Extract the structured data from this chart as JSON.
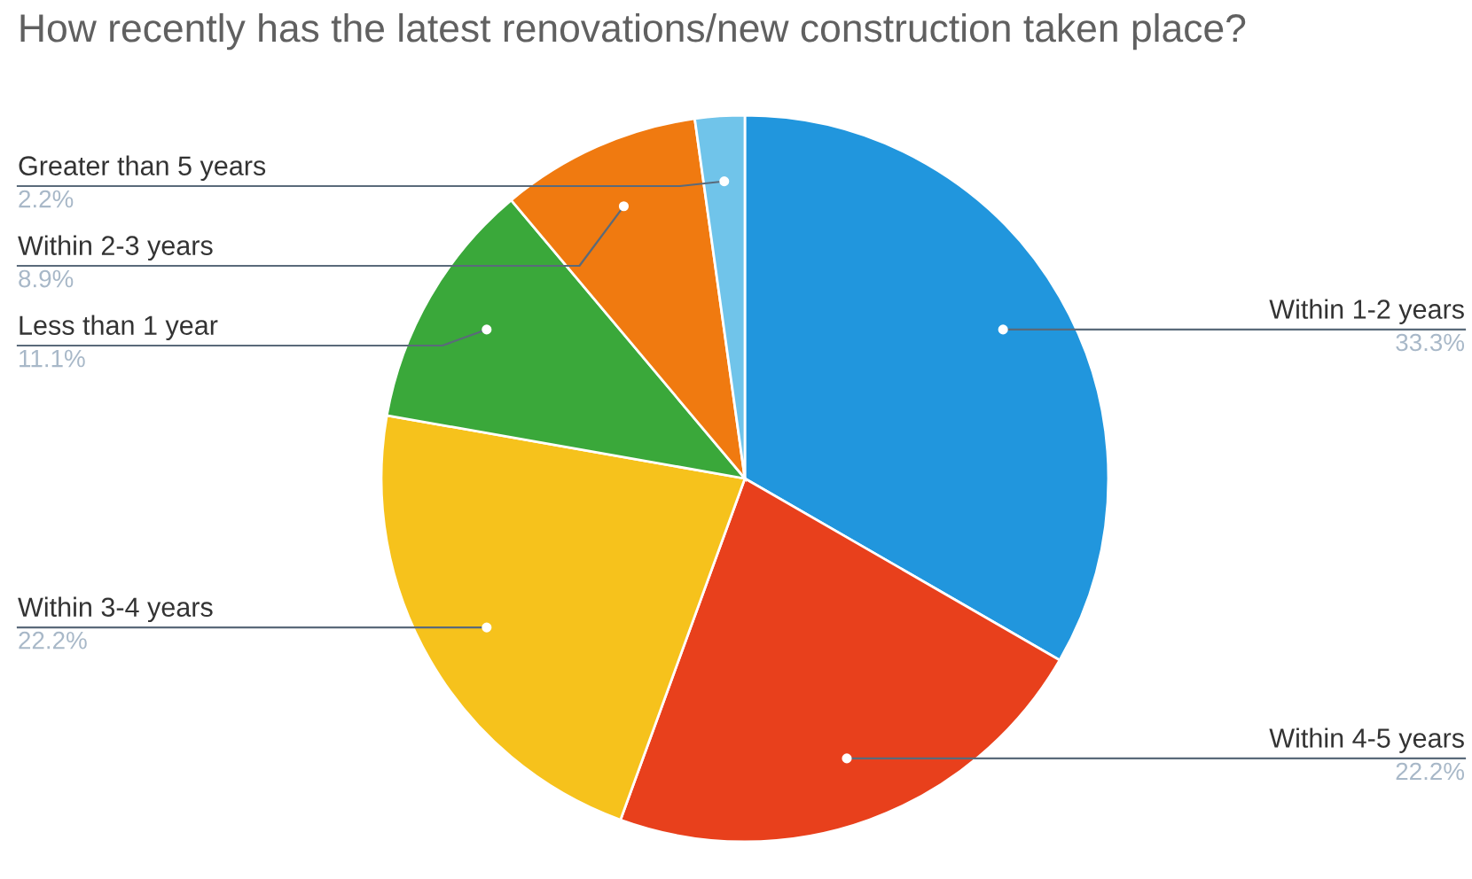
{
  "chart_data": {
    "type": "pie",
    "title": "How recently has the latest renovations/new construction taken place?",
    "categories": [
      "Within 1-2 years",
      "Within 4-5 years",
      "Within 3-4 years",
      "Less than 1 year",
      "Within 2-3 years",
      "Greater than 5 years"
    ],
    "values": [
      33.3,
      22.2,
      22.2,
      11.1,
      8.9,
      2.2
    ],
    "colors": [
      "#2196dd",
      "#e8401c",
      "#f6c21c",
      "#3aa83a",
      "#f07a10",
      "#70c4ea"
    ],
    "value_labels": [
      "33.3%",
      "22.2%",
      "22.2%",
      "11.1%",
      "8.9%",
      "2.2%"
    ],
    "legend": false
  }
}
